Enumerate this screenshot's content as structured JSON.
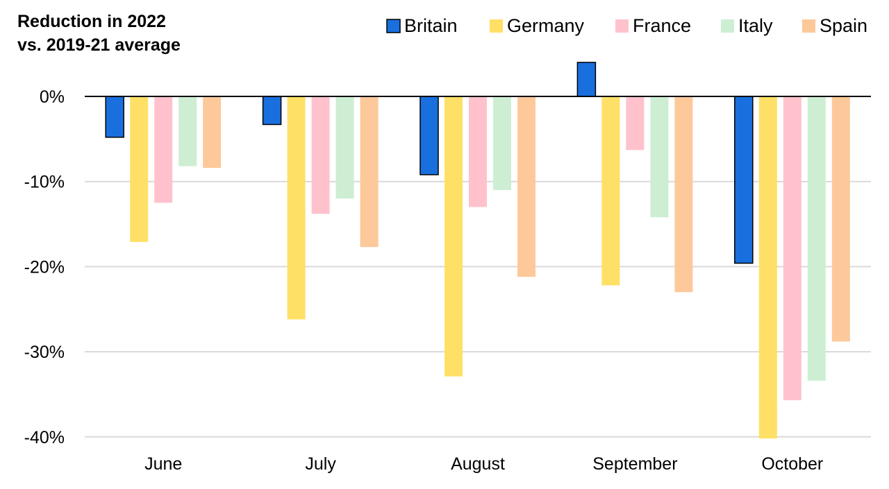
{
  "chart_data": {
    "type": "bar",
    "title_lines": [
      "Reduction in 2022",
      "vs. 2019-21 average"
    ],
    "xlabel": "",
    "ylabel": "",
    "categories": [
      "June",
      "July",
      "August",
      "September",
      "October"
    ],
    "series": [
      {
        "name": "Britain",
        "color": "#1a6fdf",
        "values": [
          -4.8,
          -3.3,
          -9.2,
          4.0,
          -19.6
        ]
      },
      {
        "name": "Germany",
        "color": "#ffe066",
        "values": [
          -17.1,
          -26.2,
          -32.9,
          -22.2,
          -40.2
        ]
      },
      {
        "name": "France",
        "color": "#ffc2cd",
        "values": [
          -12.5,
          -13.8,
          -13.0,
          -6.3,
          -35.7
        ]
      },
      {
        "name": "Italy",
        "color": "#cdeed3",
        "values": [
          -8.2,
          -12.0,
          -11.0,
          -14.2,
          -33.4
        ]
      },
      {
        "name": "Spain",
        "color": "#fdc99a",
        "values": [
          -8.4,
          -17.7,
          -21.2,
          -23.0,
          -28.8
        ]
      }
    ],
    "ylim": [
      -40,
      4
    ],
    "yticks": [
      0,
      -10,
      -20,
      -30,
      -40
    ],
    "ytick_labels": [
      "0%",
      "-10%",
      "-20%",
      "-30%",
      "-40%"
    ],
    "grid": true,
    "legend_position": "top-right"
  }
}
